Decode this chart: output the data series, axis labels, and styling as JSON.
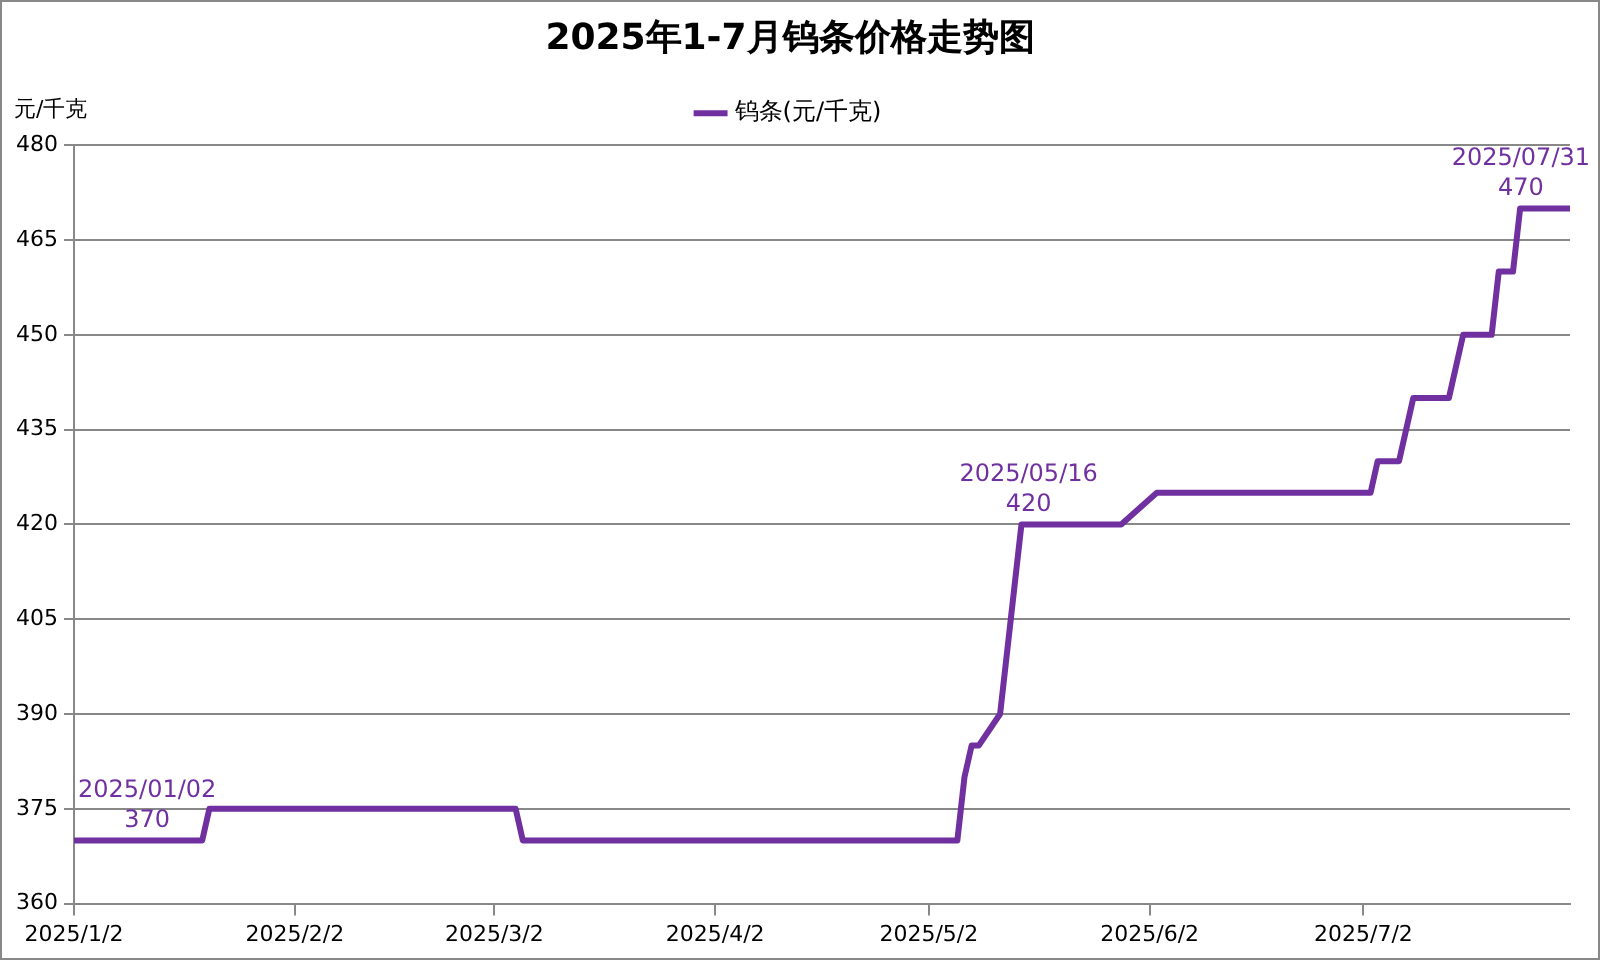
{
  "chart_data": {
    "type": "line",
    "title": "2025年1-7月钨条价格走势图",
    "ylabel": "元/千克",
    "x": [
      "2025-01-02",
      "2025-01-20",
      "2025-01-21",
      "2025-03-05",
      "2025-03-06",
      "2025-05-06",
      "2025-05-07",
      "2025-05-08",
      "2025-05-09",
      "2025-05-12",
      "2025-05-13",
      "2025-05-14",
      "2025-05-15",
      "2025-05-16",
      "2025-05-29",
      "2025-06-03",
      "2025-07-03",
      "2025-07-04",
      "2025-07-07",
      "2025-07-09",
      "2025-07-14",
      "2025-07-16",
      "2025-07-20",
      "2025-07-21",
      "2025-07-23",
      "2025-07-24",
      "2025-07-31"
    ],
    "series": [
      {
        "name": "钨条(元/千克)",
        "color": "#7030a0",
        "values": [
          370,
          370,
          375,
          375,
          370,
          370,
          380,
          385,
          385,
          390,
          400,
          410,
          420,
          420,
          420,
          425,
          425,
          430,
          430,
          440,
          440,
          450,
          450,
          460,
          460,
          470,
          470
        ]
      }
    ],
    "xlim": [
      "2025-01-02",
      "2025-07-31"
    ],
    "xticks": [
      {
        "value": "2025-01-02",
        "label": "2025/1/2"
      },
      {
        "value": "2025-02-02",
        "label": "2025/2/2"
      },
      {
        "value": "2025-03-02",
        "label": "2025/3/2"
      },
      {
        "value": "2025-04-02",
        "label": "2025/4/2"
      },
      {
        "value": "2025-05-02",
        "label": "2025/5/2"
      },
      {
        "value": "2025-06-02",
        "label": "2025/6/2"
      },
      {
        "value": "2025-07-02",
        "label": "2025/7/2"
      }
    ],
    "ylim": [
      360,
      480
    ],
    "yticks": [
      360,
      375,
      390,
      405,
      420,
      435,
      450,
      465,
      480
    ],
    "annotations": [
      {
        "text": "2025/01/02\n370",
        "x": "2025-01-02",
        "y": 370
      },
      {
        "text": "2025/05/16\n420",
        "x": "2025-05-16",
        "y": 420
      },
      {
        "text": "2025/07/31\n470",
        "x": "2025-07-31",
        "y": 470
      }
    ],
    "grid": "y",
    "legend": "top",
    "marker": "none",
    "line_style": "solid"
  }
}
